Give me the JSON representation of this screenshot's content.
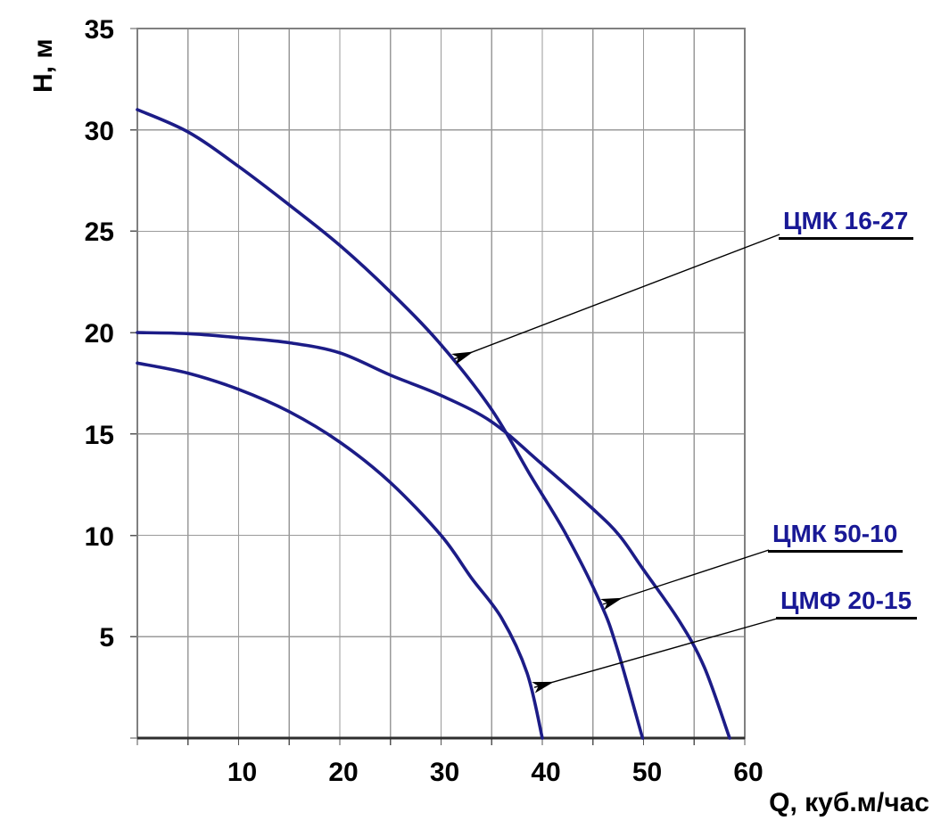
{
  "chart_data": {
    "type": "line",
    "title": "",
    "xlabel": "Q, куб.м/час",
    "ylabel": "Н, м",
    "xlim": [
      0,
      60
    ],
    "ylim": [
      0,
      35
    ],
    "grid": "on",
    "grid_step_x": 5,
    "grid_step_y": 5,
    "x_ticks": [
      10,
      20,
      30,
      40,
      50,
      60
    ],
    "y_ticks": [
      5,
      10,
      15,
      20,
      25,
      30,
      35
    ],
    "legend_position": "right-annotations",
    "series": [
      {
        "name": "ЦМК 16-27",
        "points": [
          [
            0,
            31
          ],
          [
            5,
            29.9
          ],
          [
            10,
            28.2
          ],
          [
            15,
            26.3
          ],
          [
            20,
            24.3
          ],
          [
            25,
            22.0
          ],
          [
            30,
            19.4
          ],
          [
            35,
            16.2
          ],
          [
            38.9,
            12.9
          ],
          [
            42.4,
            10.0
          ],
          [
            45.8,
            6.6
          ],
          [
            47.4,
            4.4
          ],
          [
            49.9,
            0
          ]
        ]
      },
      {
        "name": "ЦМК 50-10",
        "points": [
          [
            0,
            20.0
          ],
          [
            5,
            19.95
          ],
          [
            10,
            19.75
          ],
          [
            15,
            19.5
          ],
          [
            20,
            19.0
          ],
          [
            25,
            17.9
          ],
          [
            30,
            16.9
          ],
          [
            35,
            15.6
          ],
          [
            40,
            13.5
          ],
          [
            45,
            11.3
          ],
          [
            47.6,
            10.0
          ],
          [
            50,
            8.3
          ],
          [
            53.5,
            5.8
          ],
          [
            56,
            3.5
          ],
          [
            58.5,
            0
          ]
        ]
      },
      {
        "name": "ЦМФ 20-15",
        "points": [
          [
            0,
            18.5
          ],
          [
            5,
            18.0
          ],
          [
            10,
            17.2
          ],
          [
            15,
            16.1
          ],
          [
            20,
            14.6
          ],
          [
            25,
            12.6
          ],
          [
            30,
            10.0
          ],
          [
            33,
            7.9
          ],
          [
            36,
            5.9
          ],
          [
            38.5,
            3.2
          ],
          [
            40,
            0
          ]
        ]
      }
    ],
    "annotations": [
      {
        "text": "ЦМК 16-27",
        "arrow_point": [
          31.3,
          18.7
        ]
      },
      {
        "text": "ЦМК 50-10",
        "arrow_point": [
          46.0,
          6.6
        ]
      },
      {
        "text": "ЦМФ 20-15",
        "arrow_point": [
          39.2,
          2.5
        ]
      }
    ],
    "colors": {
      "curve": "#1c1c87",
      "annotation_text": "#191996",
      "annotation_underline": "#000000",
      "grid": "#9a9a9a",
      "frame": "#808080",
      "axis_bottom": "#2e2e2e",
      "tick_text": "#000000",
      "background": "#ffffff"
    }
  }
}
